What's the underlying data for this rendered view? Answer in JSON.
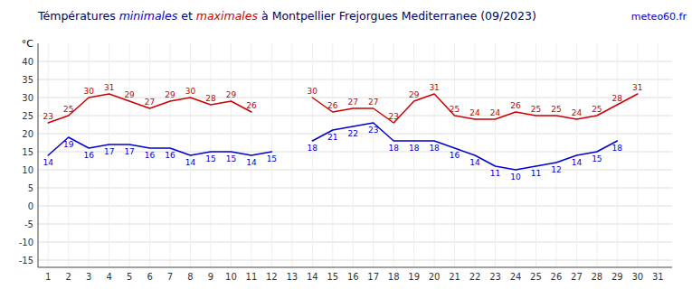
{
  "chart_data": {
    "type": "line",
    "title": "Témpératures minimales et maximales à Montpellier Frejorgues Mediterranee (09/2023)",
    "watermark": "meteo60.fr",
    "y_label": "°C",
    "x": [
      1,
      2,
      3,
      4,
      5,
      6,
      7,
      8,
      9,
      10,
      11,
      12,
      13,
      14,
      15,
      16,
      17,
      18,
      19,
      20,
      21,
      22,
      23,
      24,
      25,
      26,
      27,
      28,
      29,
      30,
      31
    ],
    "series": [
      {
        "name": "minimales",
        "color": "#0000cc",
        "values": [
          14,
          19,
          16,
          17,
          17,
          16,
          16,
          14,
          15,
          15,
          14,
          15,
          null,
          18,
          21,
          22,
          23,
          18,
          18,
          18,
          16,
          14,
          11,
          10,
          11,
          12,
          14,
          15,
          18,
          null,
          null
        ]
      },
      {
        "name": "maximales",
        "color": "#cc0000",
        "values": [
          23,
          25,
          30,
          31,
          29,
          27,
          29,
          30,
          28,
          29,
          26,
          null,
          null,
          30,
          26,
          27,
          27,
          23,
          29,
          31,
          25,
          24,
          24,
          26,
          25,
          25,
          24,
          25,
          28,
          31,
          null
        ]
      }
    ],
    "xlim": [
      0.5,
      31.7
    ],
    "ylim": [
      -17,
      45
    ],
    "xticks": [
      1,
      2,
      3,
      4,
      5,
      6,
      7,
      8,
      9,
      10,
      11,
      12,
      13,
      14,
      15,
      16,
      17,
      18,
      19,
      20,
      21,
      22,
      23,
      24,
      25,
      26,
      27,
      28,
      29,
      30,
      31
    ],
    "yticks": [
      -15,
      -10,
      -5,
      0,
      5,
      10,
      15,
      20,
      25,
      30,
      35,
      40
    ],
    "grid": true,
    "data_labels": true
  }
}
